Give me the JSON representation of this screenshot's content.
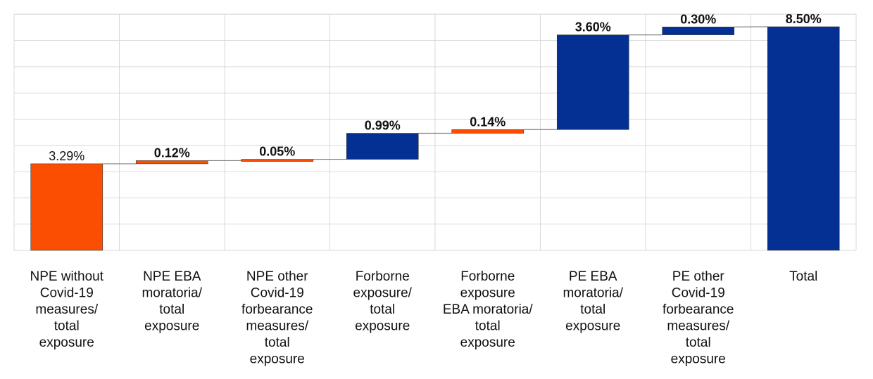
{
  "colors": {
    "npe": "#fc4e03",
    "pe": "#033092",
    "connector": "#7f7f7f",
    "grid": "#d9d9d9",
    "label_text": "#111111"
  },
  "chart_data": {
    "type": "bar",
    "subtype": "waterfall",
    "title": "",
    "xlabel": "",
    "ylabel": "",
    "ylim": [
      0,
      8.5
    ],
    "grid": true,
    "legend": "none",
    "unit": "%",
    "categories": [
      [
        "NPE without",
        "Covid-19",
        "measures/",
        "total",
        "exposure"
      ],
      [
        "NPE EBA",
        "moratoria/",
        "total",
        "exposure"
      ],
      [
        "NPE other",
        "Covid-19",
        "forbearance",
        "measures/",
        "total",
        "exposure"
      ],
      [
        "Forborne",
        "exposure/",
        "total",
        "exposure"
      ],
      [
        "Forborne",
        "exposure",
        "EBA moratoria/",
        "total",
        "exposure"
      ],
      [
        "PE EBA",
        "moratoria/",
        "total",
        "exposure"
      ],
      [
        "PE other",
        "Covid-19",
        "forbearance",
        "measures/",
        "total",
        "exposure"
      ],
      [
        "Total"
      ]
    ],
    "values": [
      3.29,
      0.12,
      0.05,
      0.99,
      0.14,
      3.6,
      0.3,
      8.5
    ],
    "value_labels": [
      "3.29%",
      "0.12%",
      "0.05%",
      "0.99%",
      "0.14%",
      "3.60%",
      "0.30%",
      "8.50%"
    ],
    "is_total": [
      false,
      false,
      false,
      false,
      false,
      false,
      false,
      true
    ],
    "bar_colors": [
      "npe",
      "npe",
      "npe",
      "pe",
      "npe",
      "pe",
      "pe",
      "pe"
    ],
    "label_bold": [
      false,
      true,
      true,
      true,
      true,
      true,
      true,
      true
    ]
  }
}
